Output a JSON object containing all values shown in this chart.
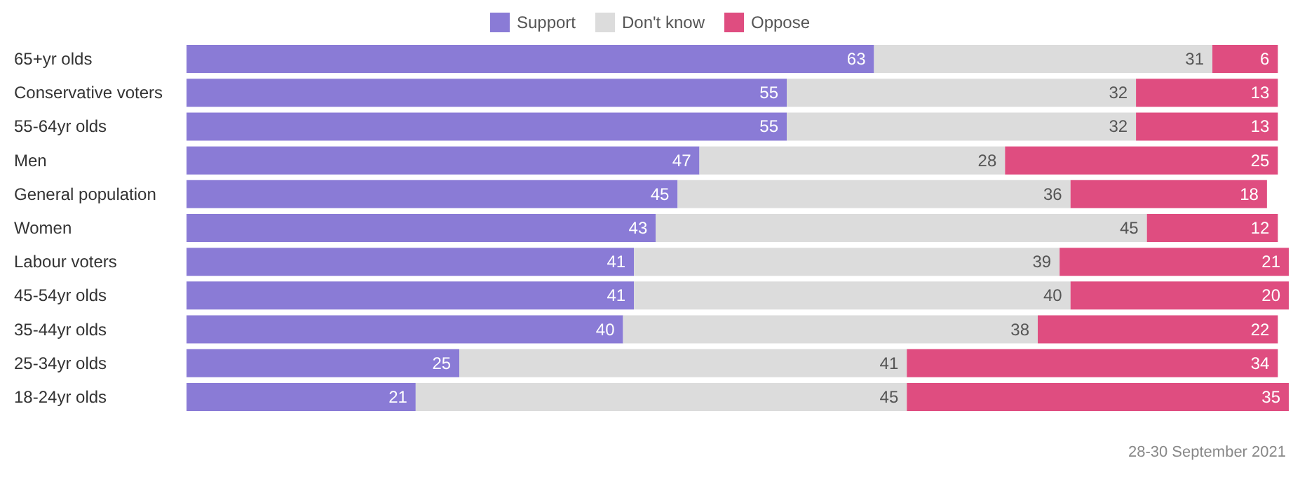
{
  "chart_data": {
    "type": "bar",
    "orientation": "horizontal",
    "stacked": true,
    "data_labels": true,
    "legend": "top",
    "categories": [
      "65+yr olds",
      "Conservative voters",
      "55-64yr olds",
      "Men",
      "General population",
      "Women",
      "Labour voters",
      "45-54yr olds",
      "35-44yr olds",
      "25-34yr olds",
      "18-24yr olds"
    ],
    "series": [
      {
        "name": "Support",
        "color": "#8a7bd6",
        "values": [
          63,
          55,
          55,
          47,
          45,
          43,
          41,
          41,
          40,
          25,
          21
        ]
      },
      {
        "name": "Don't know",
        "color": "#dcdcdc",
        "values": [
          31,
          32,
          32,
          28,
          36,
          45,
          39,
          40,
          38,
          41,
          45
        ]
      },
      {
        "name": "Oppose",
        "color": "#df4d80",
        "values": [
          6,
          13,
          13,
          25,
          18,
          12,
          21,
          20,
          22,
          34,
          35
        ]
      }
    ],
    "annotations": [
      "28-30 September 2021"
    ]
  }
}
